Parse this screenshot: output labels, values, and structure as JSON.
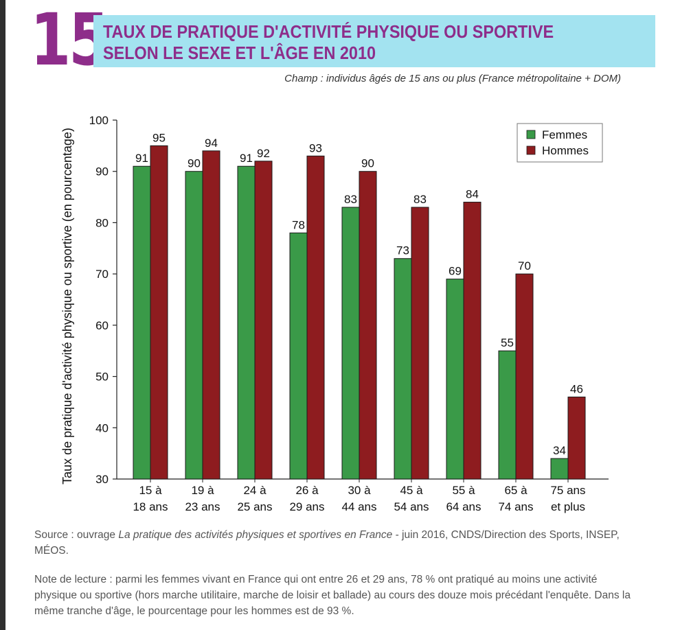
{
  "figure": {
    "number": "15",
    "title_line1": "TAUX DE PRATIQUE D'ACTIVITÉ PHYSIQUE OU SPORTIVE",
    "title_line2": "SELON LE SEXE ET L'ÂGE EN 2010",
    "subtitle": "Champ : individus âgés de 15 ans ou plus (France métropolitaine + DOM)",
    "accent_color": "#8e2d8a",
    "band_color": "#a3e3f0"
  },
  "chart_data": {
    "type": "bar",
    "ylabel": "Taux de pratique d'activité physique ou sportive (en pourcentage)",
    "ylim": [
      30,
      100
    ],
    "yticks": [
      30,
      40,
      50,
      60,
      70,
      80,
      90,
      100
    ],
    "categories": [
      [
        "15 à",
        "18 ans"
      ],
      [
        "19 à",
        "23 ans"
      ],
      [
        "24 à",
        "25 ans"
      ],
      [
        "26 à",
        "29 ans"
      ],
      [
        "30 à",
        "44 ans"
      ],
      [
        "45 à",
        "54 ans"
      ],
      [
        "55 à",
        "64 ans"
      ],
      [
        "65 à",
        "74 ans"
      ],
      [
        "75 ans",
        "et plus"
      ]
    ],
    "series": [
      {
        "name": "Femmes",
        "color": "#3a9a48",
        "values": [
          91,
          90,
          91,
          78,
          83,
          73,
          69,
          55,
          34
        ]
      },
      {
        "name": "Hommes",
        "color": "#8e1c1f",
        "values": [
          95,
          94,
          92,
          93,
          90,
          83,
          84,
          70,
          46
        ]
      }
    ],
    "legend_position": "top-right",
    "grid": false
  },
  "source": {
    "prefix": "Source : ouvrage ",
    "work": "La pratique des activités physiques et sportives en France",
    "suffix": " - juin 2016, CNDS/Direction des Sports, INSEP, MÉOS."
  },
  "note": "Note de lecture : parmi les femmes vivant en France qui ont entre 26 et 29 ans, 78 % ont pratiqué au moins une activité physique ou sportive (hors marche utilitaire, marche de loisir et ballade) au cours des douze mois précédant  l'enquête. Dans la même tranche d'âge, le pourcentage pour les hommes est de 93 %."
}
